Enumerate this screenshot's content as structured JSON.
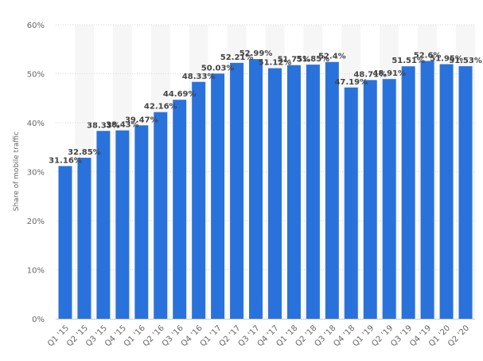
{
  "chart_data": {
    "type": "bar",
    "title": "",
    "xlabel": "",
    "ylabel": "Share of mobile traffic",
    "ylim": [
      0,
      60
    ],
    "yticks": [
      0,
      10,
      20,
      30,
      40,
      50,
      60
    ],
    "ytick_suffix": "%",
    "grid": true,
    "bar_color": "#2a72db",
    "band_color": "#f6f6f6",
    "categories": [
      "Q1 '15",
      "Q2 '15",
      "Q3 '15",
      "Q4 '15",
      "Q1 '16",
      "Q2 '16",
      "Q3 '16",
      "Q4 '16",
      "Q1 '17",
      "Q2 '17",
      "Q3 '17",
      "Q4 '17",
      "Q1 '18",
      "Q2 '18",
      "Q3 '18",
      "Q4 '18",
      "Q1 '19",
      "Q2 '19",
      "Q3 '19",
      "Q4 '19",
      "Q1 '20",
      "Q2 '20"
    ],
    "values": [
      31.16,
      32.85,
      38.33,
      38.43,
      39.47,
      42.16,
      44.69,
      48.33,
      50.03,
      52.21,
      52.99,
      51.12,
      51.75,
      51.85,
      52.4,
      47.19,
      48.71,
      48.91,
      51.51,
      52.6,
      51.95,
      51.53
    ],
    "data_labels": [
      "31.16%",
      "32.85%",
      "38.33%",
      "38.43%",
      "39.47%",
      "42.16%",
      "44.69%",
      "48.33%",
      "50.03%",
      "52.21%",
      "52.99%",
      "51.12%",
      "51.75%",
      "51.85%",
      "52.4%",
      "47.19%",
      "48.71%",
      "48.91%",
      "51.51%",
      "52.6%",
      "51.95%",
      "51.53%"
    ]
  }
}
